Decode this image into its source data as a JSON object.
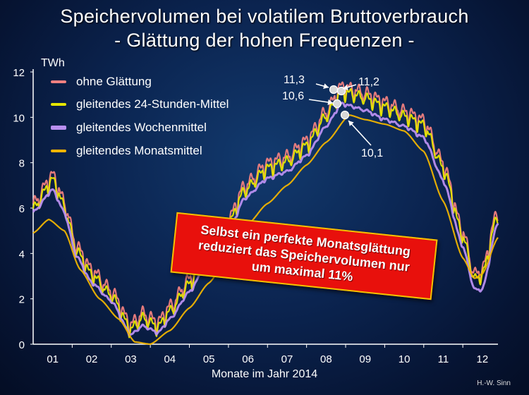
{
  "title_line1": "Speichervolumen bei volatilem Bruttoverbrauch",
  "title_line2": "- Glättung der hohen Frequenzen -",
  "author": "H.-W. Sinn",
  "callout_text": "Selbst ein perfekte Monatsglättung\nreduziert das Speichervolumen nur\num maximal 11%",
  "chart_data": {
    "type": "line",
    "ylabel": "TWh",
    "xlabel": "Monate im Jahr 2014",
    "ylim": [
      0,
      12
    ],
    "yticks": [
      "0",
      "2",
      "4",
      "6",
      "8",
      "10",
      "12"
    ],
    "x_categories": [
      "01",
      "02",
      "03",
      "04",
      "05",
      "06",
      "07",
      "08",
      "09",
      "10",
      "11",
      "12"
    ],
    "xlim_months": [
      0.5,
      12.4
    ],
    "legend_position": "top-left",
    "series": [
      {
        "name": "ohne Glättung",
        "color": "#f08080",
        "noise": 0.45,
        "knots": [
          [
            0.5,
            6.1
          ],
          [
            1.0,
            7.4
          ],
          [
            1.3,
            6.2
          ],
          [
            1.6,
            4.3
          ],
          [
            2.0,
            3.2
          ],
          [
            2.5,
            2.3
          ],
          [
            3.0,
            0.8
          ],
          [
            3.3,
            1.3
          ],
          [
            3.7,
            0.9
          ],
          [
            4.0,
            1.6
          ],
          [
            4.5,
            2.8
          ],
          [
            5.0,
            4.2
          ],
          [
            5.5,
            5.4
          ],
          [
            5.9,
            6.9
          ],
          [
            6.5,
            7.9
          ],
          [
            7.0,
            8.2
          ],
          [
            7.5,
            8.9
          ],
          [
            8.0,
            10.2
          ],
          [
            8.4,
            11.3
          ],
          [
            8.6,
            11.2
          ],
          [
            9.0,
            11.0
          ],
          [
            9.5,
            10.6
          ],
          [
            10.0,
            10.2
          ],
          [
            10.5,
            9.8
          ],
          [
            11.0,
            7.9
          ],
          [
            11.5,
            4.9
          ],
          [
            11.8,
            3.0
          ],
          [
            12.0,
            3.2
          ],
          [
            12.4,
            5.9
          ]
        ]
      },
      {
        "name": "gleitendes 24-Stunden-Mittel",
        "color": "#e6e600",
        "noise": 0.35,
        "knots": [
          [
            0.5,
            5.9
          ],
          [
            1.0,
            7.2
          ],
          [
            1.3,
            6.0
          ],
          [
            1.6,
            4.1
          ],
          [
            2.0,
            3.0
          ],
          [
            2.5,
            2.1
          ],
          [
            3.0,
            0.6
          ],
          [
            3.3,
            1.1
          ],
          [
            3.7,
            0.7
          ],
          [
            4.0,
            1.4
          ],
          [
            4.5,
            2.6
          ],
          [
            5.0,
            4.0
          ],
          [
            5.5,
            5.2
          ],
          [
            5.9,
            6.7
          ],
          [
            6.5,
            7.7
          ],
          [
            7.0,
            8.0
          ],
          [
            7.5,
            8.7
          ],
          [
            8.0,
            10.0
          ],
          [
            8.4,
            11.1
          ],
          [
            8.6,
            11.0
          ],
          [
            9.0,
            10.8
          ],
          [
            9.5,
            10.4
          ],
          [
            10.0,
            10.0
          ],
          [
            10.5,
            9.6
          ],
          [
            11.0,
            7.7
          ],
          [
            11.5,
            4.7
          ],
          [
            11.8,
            2.8
          ],
          [
            12.0,
            3.0
          ],
          [
            12.4,
            5.7
          ]
        ]
      },
      {
        "name": "gleitendes Wochenmittel",
        "color": "#b98ff0",
        "noise": 0.08,
        "knots": [
          [
            0.5,
            5.8
          ],
          [
            1.0,
            6.8
          ],
          [
            1.3,
            5.8
          ],
          [
            1.6,
            3.9
          ],
          [
            2.0,
            2.7
          ],
          [
            2.5,
            1.9
          ],
          [
            3.0,
            0.4
          ],
          [
            3.3,
            0.8
          ],
          [
            3.7,
            0.5
          ],
          [
            4.0,
            1.1
          ],
          [
            4.5,
            2.3
          ],
          [
            5.0,
            3.7
          ],
          [
            5.5,
            4.9
          ],
          [
            5.9,
            6.4
          ],
          [
            6.5,
            7.3
          ],
          [
            7.0,
            7.6
          ],
          [
            7.5,
            8.3
          ],
          [
            8.0,
            9.6
          ],
          [
            8.4,
            10.6
          ],
          [
            8.6,
            10.5
          ],
          [
            9.0,
            10.3
          ],
          [
            9.5,
            9.9
          ],
          [
            10.0,
            9.6
          ],
          [
            10.5,
            9.1
          ],
          [
            11.0,
            7.2
          ],
          [
            11.5,
            4.3
          ],
          [
            11.8,
            2.4
          ],
          [
            12.0,
            2.4
          ],
          [
            12.4,
            5.4
          ]
        ]
      },
      {
        "name": "gleitendes Monatsmittel",
        "color": "#f0b400",
        "noise": 0.0,
        "knots": [
          [
            0.5,
            4.9
          ],
          [
            0.9,
            5.5
          ],
          [
            1.3,
            5.0
          ],
          [
            1.7,
            3.3
          ],
          [
            2.2,
            2.0
          ],
          [
            2.7,
            1.1
          ],
          [
            3.1,
            0.1
          ],
          [
            3.5,
            0.0
          ],
          [
            4.0,
            0.6
          ],
          [
            4.5,
            1.6
          ],
          [
            5.0,
            2.7
          ],
          [
            5.5,
            3.9
          ],
          [
            6.0,
            5.3
          ],
          [
            6.5,
            6.2
          ],
          [
            7.0,
            7.0
          ],
          [
            7.5,
            7.9
          ],
          [
            8.0,
            8.9
          ],
          [
            8.6,
            10.1
          ],
          [
            9.0,
            9.9
          ],
          [
            9.5,
            9.7
          ],
          [
            10.0,
            9.4
          ],
          [
            10.5,
            8.5
          ],
          [
            11.0,
            6.3
          ],
          [
            11.5,
            3.8
          ],
          [
            11.8,
            2.9
          ],
          [
            12.0,
            3.1
          ],
          [
            12.4,
            4.7
          ]
        ]
      }
    ],
    "annotations": [
      {
        "text": "11,3",
        "x": 8.4,
        "y": 11.3
      },
      {
        "text": "11,2",
        "x": 8.6,
        "y": 11.2
      },
      {
        "text": "10,6",
        "x": 8.4,
        "y": 10.6
      },
      {
        "text": "10,1",
        "x": 8.6,
        "y": 10.1
      }
    ]
  }
}
